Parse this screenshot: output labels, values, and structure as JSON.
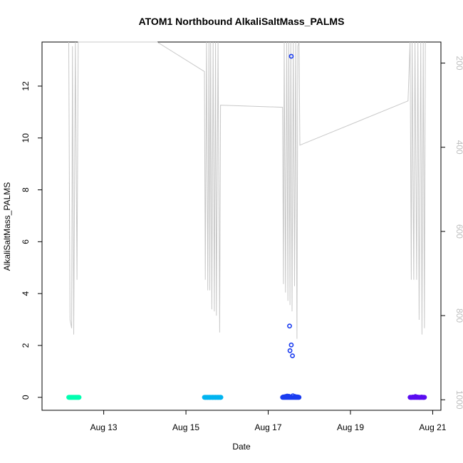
{
  "chart_data": {
    "type": "scatter",
    "title": "ATOM1 Northbound AlkaliSaltMass_PALMS",
    "xlabel": "Date",
    "ylabel": "AlkaliSaltMass_PALMS",
    "x_ticks": [
      "Aug 13",
      "Aug 15",
      "Aug 17",
      "Aug 19",
      "Aug 21"
    ],
    "x_tick_days": [
      13,
      15,
      17,
      19,
      21
    ],
    "xlim_days": [
      11.5,
      21.2
    ],
    "ylim": [
      -0.5,
      13.7
    ],
    "y_ticks": [
      0,
      2,
      4,
      6,
      8,
      10,
      12
    ],
    "right_axis": {
      "ticks": [
        200,
        400,
        600,
        800,
        1000
      ],
      "ylim": [
        1025,
        150
      ],
      "inverted": true,
      "color": "#bebebe"
    },
    "series": [
      {
        "color": "#00ffb0",
        "day_start": 12.15,
        "day_end": 12.4,
        "points": [
          [
            12.17,
            0
          ],
          [
            12.21,
            0
          ],
          [
            12.25,
            0
          ],
          [
            12.3,
            0
          ],
          [
            12.35,
            0
          ],
          [
            12.39,
            0
          ]
        ]
      },
      {
        "color": "#00b4f0",
        "day_start": 15.45,
        "day_end": 15.85,
        "points": [
          [
            15.47,
            0
          ],
          [
            15.52,
            0
          ],
          [
            15.58,
            0
          ],
          [
            15.65,
            0
          ],
          [
            15.72,
            0
          ],
          [
            15.78,
            0
          ],
          [
            15.84,
            0
          ]
        ]
      },
      {
        "color": "#1a3cf0",
        "day_start": 17.35,
        "day_end": 17.75,
        "points": [
          [
            17.37,
            0.02
          ],
          [
            17.42,
            0.03
          ],
          [
            17.46,
            0.05
          ],
          [
            17.5,
            0.04
          ],
          [
            17.55,
            0.02
          ],
          [
            17.6,
            0.06
          ],
          [
            17.65,
            0.03
          ],
          [
            17.7,
            0.02
          ],
          [
            17.73,
            0.01
          ],
          [
            17.52,
            2.75
          ],
          [
            17.56,
            2.02
          ],
          [
            17.53,
            1.8
          ],
          [
            17.59,
            1.6
          ],
          [
            17.56,
            13.15
          ]
        ]
      },
      {
        "color": "#5a0cf0",
        "day_start": 20.45,
        "day_end": 20.8,
        "points": [
          [
            20.47,
            0
          ],
          [
            20.52,
            0.01
          ],
          [
            20.58,
            0.03
          ],
          [
            20.63,
            0.01
          ],
          [
            20.68,
            0
          ],
          [
            20.73,
            0.01
          ],
          [
            20.78,
            0
          ]
        ]
      }
    ],
    "altitude_line": {
      "color": "#c8c8c8",
      "points": [
        [
          12.15,
          150
        ],
        [
          12.18,
          810
        ],
        [
          12.22,
          830
        ],
        [
          12.24,
          160
        ],
        [
          12.27,
          845
        ],
        [
          12.31,
          150
        ],
        [
          12.35,
          715
        ],
        [
          12.38,
          150
        ],
        [
          12.4,
          150
        ],
        [
          14.3,
          150
        ],
        [
          15.45,
          220
        ],
        [
          15.47,
          715
        ],
        [
          15.5,
          150
        ],
        [
          15.53,
          740
        ],
        [
          15.56,
          150
        ],
        [
          15.58,
          740
        ],
        [
          15.6,
          150
        ],
        [
          15.63,
          785
        ],
        [
          15.66,
          150
        ],
        [
          15.69,
          790
        ],
        [
          15.72,
          150
        ],
        [
          15.74,
          800
        ],
        [
          15.76,
          500
        ],
        [
          15.78,
          150
        ],
        [
          15.82,
          840
        ],
        [
          15.84,
          300
        ],
        [
          17.35,
          305
        ],
        [
          17.37,
          725
        ],
        [
          17.39,
          150
        ],
        [
          17.42,
          745
        ],
        [
          17.45,
          150
        ],
        [
          17.48,
          765
        ],
        [
          17.5,
          150
        ],
        [
          17.53,
          775
        ],
        [
          17.55,
          150
        ],
        [
          17.58,
          790
        ],
        [
          17.61,
          150
        ],
        [
          17.64,
          730
        ],
        [
          17.67,
          150
        ],
        [
          17.7,
          855
        ],
        [
          17.72,
          160
        ],
        [
          17.75,
          150
        ],
        [
          17.77,
          395
        ],
        [
          20.4,
          290
        ],
        [
          20.45,
          150
        ],
        [
          20.48,
          715
        ],
        [
          20.5,
          150
        ],
        [
          20.54,
          715
        ],
        [
          20.57,
          150
        ],
        [
          20.61,
          715
        ],
        [
          20.64,
          150
        ],
        [
          20.67,
          810
        ],
        [
          20.71,
          150
        ],
        [
          20.74,
          845
        ],
        [
          20.77,
          150
        ],
        [
          20.8,
          830
        ],
        [
          20.82,
          150
        ]
      ]
    }
  }
}
